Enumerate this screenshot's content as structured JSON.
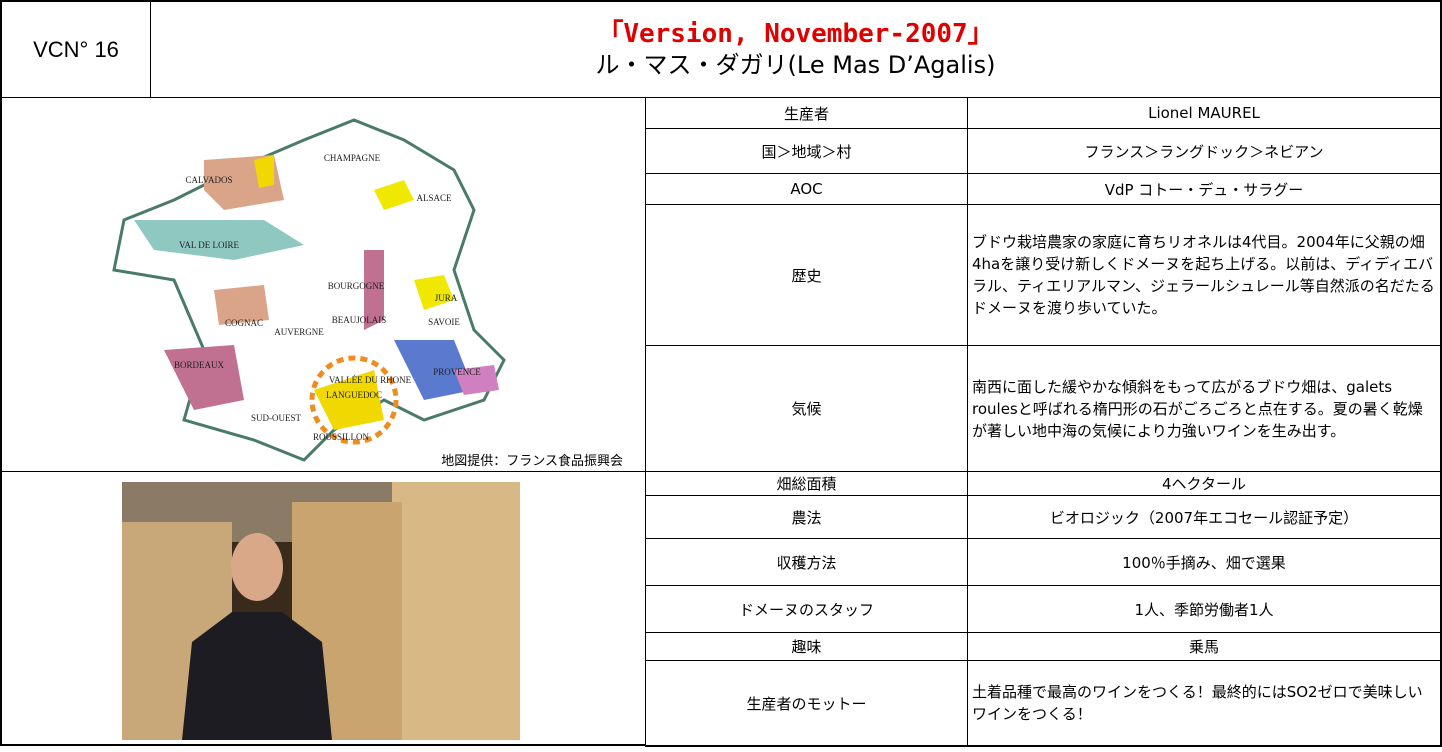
{
  "header": {
    "id": "VCN° 16",
    "version": "「Version, November-2007」",
    "title": "ル・マス・ダガリ(Le Mas D’Agalis)"
  },
  "map": {
    "labels": [
      "CHAMPAGNE",
      "ALSACE",
      "CALVADOS",
      "VAL DE LOIRE",
      "BOURGOGNE",
      "JURA",
      "SAVOIE",
      "BEAUJOLAIS",
      "COGNAC",
      "AUVERGNE",
      "BORDEAUX",
      "VALLÉE DU RHONE",
      "LANGUEDOC",
      "PROVENCE",
      "SUD-OUEST",
      "ROUSSILLON"
    ],
    "credit": "地図提供：フランス食品振興会"
  },
  "table": {
    "rows": [
      [
        "生産者",
        "Lionel MAUREL"
      ],
      [
        "国＞地域＞村",
        "フランス＞ラングドック＞ネビアン"
      ],
      [
        "AOC",
        "VdP コトー・デュ・サラグー"
      ],
      [
        "歴史",
        "ブドウ栽培農家の家庭に育ちリオネルは4代目。2004年に父親の畑4haを譲り受け新しくドメーヌを起ち上げる。以前は、ディディエバラル、ティエリアルマン、ジェラールシュレール等自然派の名だたるドメーヌを渡り歩いていた。"
      ],
      [
        "気候",
        "南西に面した緩やかな傾斜をもって広がるブドウ畑は、galets roulesと呼ばれる楕円形の石がごろごろと点在する。夏の暑く乾燥が著しい地中海の気候により力強いワインを生み出す。"
      ],
      [
        "畑総面積",
        "4ヘクタール"
      ],
      [
        "農法",
        "ビオロジック（2007年エコセール認証予定）"
      ],
      [
        "収穫方法",
        "100％手摘み、畑で選果"
      ],
      [
        "ドメーヌのスタッフ",
        "1人、季節労働者1人"
      ],
      [
        "趣味",
        "乗馬"
      ],
      [
        "生産者のモットー",
        "土着品種で最高のワインをつくる！最終的にはSO2ゼロで美味しいワインをつくる！"
      ]
    ]
  }
}
